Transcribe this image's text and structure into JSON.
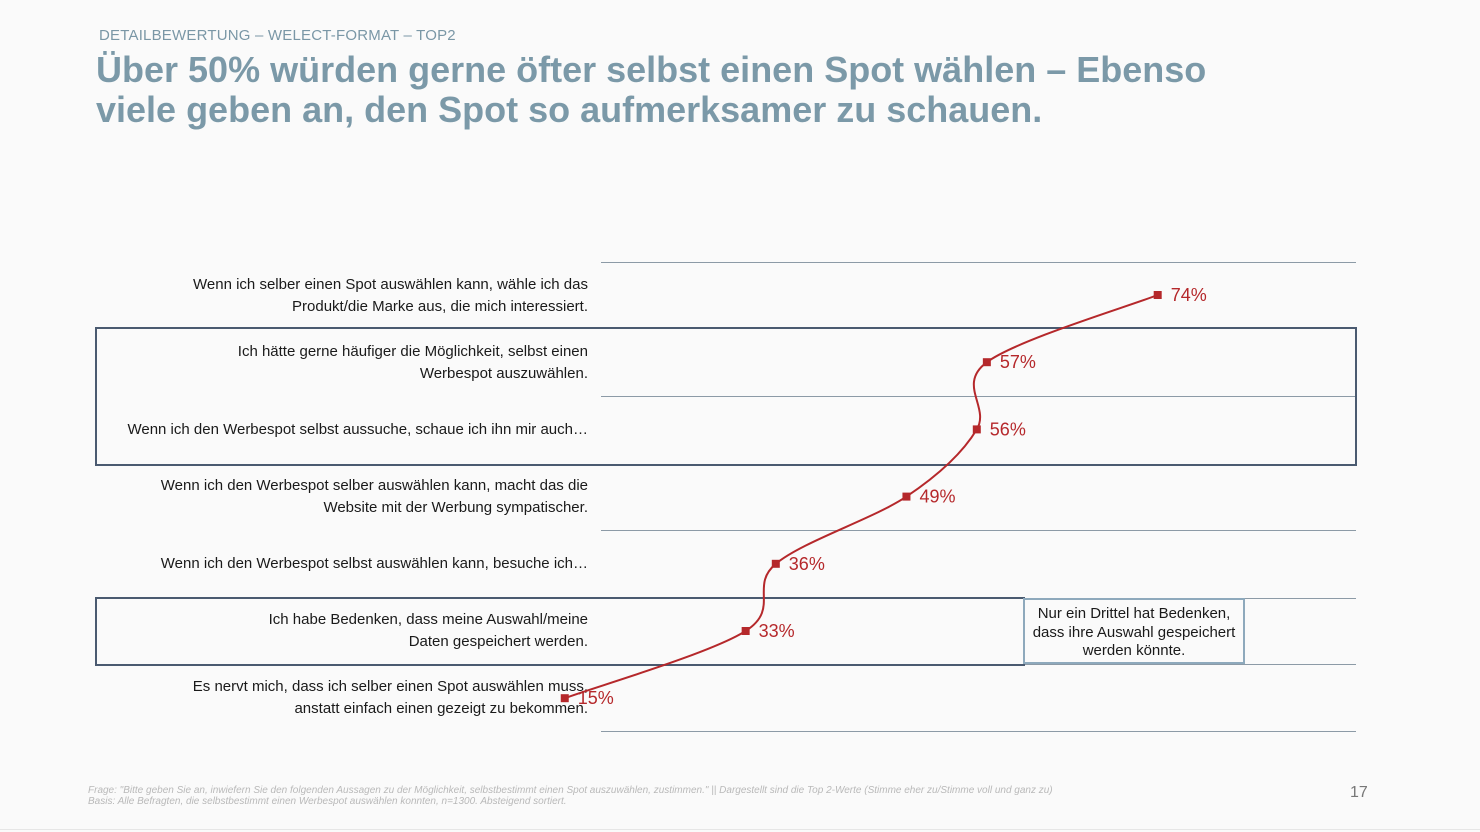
{
  "header": {
    "kicker": "DETAILBEWERTUNG – WELECT-FORMAT – TOP2",
    "title_line1": "Über 50% würden gerne öfter selbst einen Spot wählen – Ebenso",
    "title_line2": "viele geben an, den Spot so aufmerksamer zu schauen."
  },
  "statements": [
    {
      "line1": "Wenn ich selber einen Spot auswählen kann, wähle ich das",
      "line2": "Produkt/die Marke aus, die mich interessiert."
    },
    {
      "line1": "Ich hätte gerne häufiger die Möglichkeit, selbst einen",
      "line2": "Werbespot auszuwählen."
    },
    {
      "line1": "Wenn ich den Werbespot selbst aussuche, schaue ich ihn mir auch…",
      "line2": ""
    },
    {
      "line1": "Wenn ich den Werbespot selber auswählen kann, macht das die",
      "line2": "Website mit der Werbung sympatischer."
    },
    {
      "line1": "Wenn ich den Werbespot selbst auswählen kann, besuche ich…",
      "line2": ""
    },
    {
      "line1": "Ich habe Bedenken, dass meine Auswahl/meine",
      "line2": "Daten gespeichert werden."
    },
    {
      "line1": "Es nervt mich, dass ich selber einen Spot auswählen muss,",
      "line2": "anstatt einfach einen gezeigt zu bekommen."
    }
  ],
  "chart_data": {
    "type": "line",
    "orientation": "horizontal-value",
    "categories": [
      "Wenn ich selber einen Spot auswählen kann, wähle ich das Produkt/die Marke aus, die mich interessiert.",
      "Ich hätte gerne häufiger die Möglichkeit, selbst einen Werbespot auszuwählen.",
      "Wenn ich den Werbespot selbst aussuche, schaue ich ihn mir auch…",
      "Wenn ich den Werbespot selber auswählen kann, macht das die Website mit der Werbung sympatischer.",
      "Wenn ich den Werbespot selbst auswählen kann, besuche ich…",
      "Ich habe Bedenken, dass meine Auswahl/meine Daten gespeichert werden.",
      "Es nervt mich, dass ich selber einen Spot auswählen muss, anstatt einfach einen gezeigt zu bekommen."
    ],
    "values": [
      74,
      57,
      56,
      49,
      36,
      33,
      15
    ],
    "value_labels": [
      "74%",
      "57%",
      "56%",
      "49%",
      "36%",
      "33%",
      "15%"
    ],
    "unit": "%",
    "xlim": [
      0,
      100
    ],
    "series_color": "#b5282b",
    "highlighted_groups": [
      [
        1,
        2
      ],
      [
        5
      ]
    ],
    "annotation": {
      "line1": "Nur ein Drittel hat Bedenken,",
      "line2": "dass ihre Auswahl gespeichert",
      "line3": "werden könnte."
    }
  },
  "footer": {
    "question": "Frage: \"Bitte geben Sie an, inwiefern Sie den folgenden Aussagen zu der Möglichkeit, selbstbestimmt einen Spot auszuwählen, zustimmen.\" || Dargestellt sind die Top 2-Werte (Stimme eher zu/Stimme voll und ganz zu)",
    "basis": "Basis: Alle Befragten, die selbstbestimmt einen Werbespot auswählen konnten, n=1300. Absteigend sortiert.",
    "page_number": "17"
  }
}
